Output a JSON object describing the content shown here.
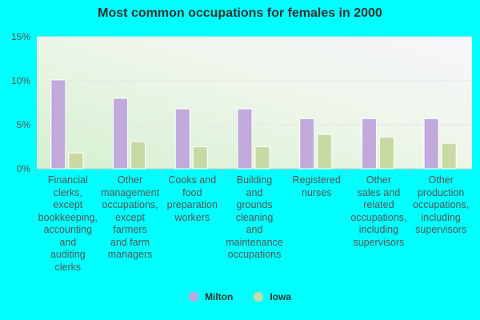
{
  "chart_data": {
    "type": "bar",
    "title": "Most common occupations for females in 2000",
    "categories": [
      "Financial\nclerks,\nexcept\nbookkeeping,\naccounting\nand\nauditing\nclerks",
      "Other\nmanagement\noccupations,\nexcept\nfarmers\nand farm\nmanagers",
      "Cooks and\nfood\npreparation\nworkers",
      "Building\nand\ngrounds\ncleaning\nand\nmaintenance\noccupations",
      "Registered\nnurses",
      "Other\nsales and\nrelated\noccupations,\nincluding\nsupervisors",
      "Other\nproduction\noccupations,\nincluding\nsupervisors"
    ],
    "series": [
      {
        "name": "Milton",
        "color": "#c0a9db",
        "values": [
          10.1,
          8.0,
          6.8,
          6.8,
          5.7,
          5.7,
          5.7
        ]
      },
      {
        "name": "Iowa",
        "color": "#c8d9a4",
        "values": [
          1.8,
          3.1,
          2.5,
          2.5,
          3.9,
          3.6,
          2.9
        ]
      }
    ],
    "yticks": [
      "0%",
      "5%",
      "10%",
      "15%"
    ],
    "ytick_values": [
      0,
      5,
      10,
      15
    ],
    "ylim": [
      0,
      15
    ],
    "grid": true,
    "legend_position": "bottom-center"
  }
}
